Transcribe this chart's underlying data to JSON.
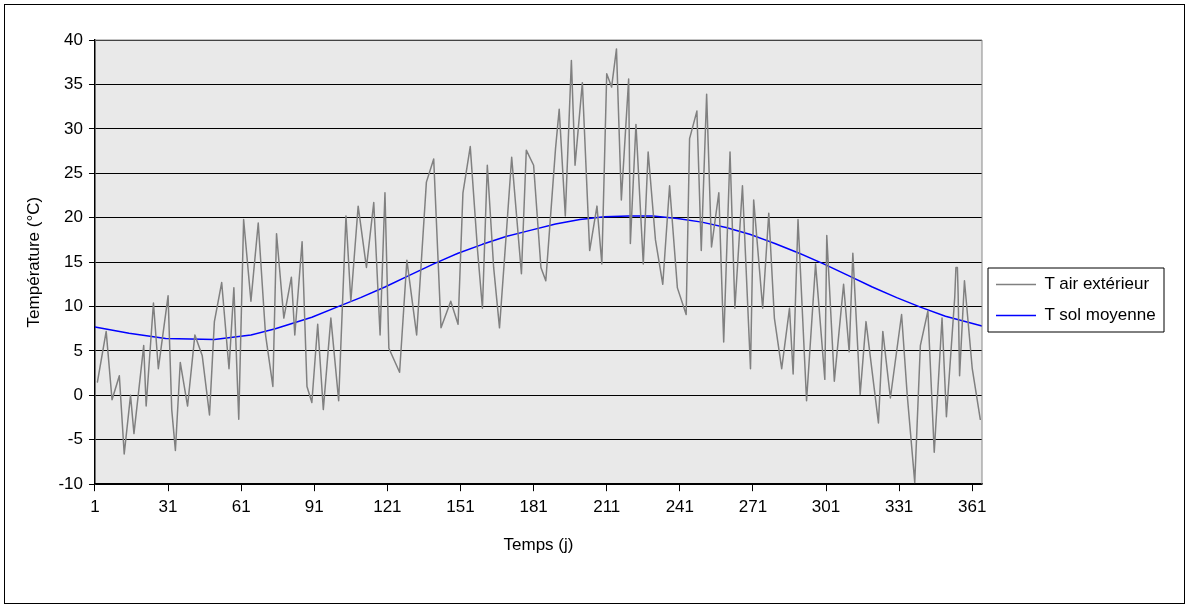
{
  "chart_data": {
    "type": "line",
    "xlabel": "Temps (j)",
    "ylabel": "Température (°C)",
    "xlim": [
      1,
      365
    ],
    "xticks": [
      1,
      31,
      61,
      91,
      121,
      151,
      181,
      211,
      241,
      271,
      301,
      331,
      361
    ],
    "ylim": [
      -10,
      40
    ],
    "yticks": [
      -10,
      -5,
      0,
      5,
      10,
      15,
      20,
      25,
      30,
      35,
      40
    ],
    "grid": "y",
    "legend": "right",
    "marker": "none",
    "line_style": "solid",
    "series": [
      {
        "name": "T air extérieur",
        "color": "#808080",
        "x": [
          2,
          5.6,
          8,
          11,
          13,
          15.6,
          17,
          21,
          22,
          25,
          27,
          31,
          32.5,
          34,
          36,
          39,
          42,
          45,
          48,
          50,
          53,
          56,
          58,
          60,
          62,
          65,
          68,
          71,
          74,
          75.5,
          78.5,
          81.6,
          83,
          86,
          88,
          90,
          92.4,
          94.7,
          97.8,
          101,
          104,
          106,
          109,
          112.4,
          115.4,
          118,
          120,
          121.6,
          126,
          129,
          133,
          137,
          140,
          143,
          147,
          150,
          152,
          155,
          158,
          160,
          162,
          164.6,
          167,
          170,
          172,
          176,
          178,
          181,
          184,
          186,
          190,
          191.5,
          194,
          196.5,
          198,
          201,
          204,
          207,
          209,
          211,
          213,
          215,
          217,
          220,
          220.7,
          223,
          226,
          228,
          231,
          234,
          236.8,
          240,
          243.6,
          245,
          248,
          249.8,
          252,
          254,
          257,
          259,
          261.6,
          263.6,
          266.7,
          270,
          271.3,
          275,
          277.5,
          279.8,
          282.8,
          286,
          287.5,
          289.5,
          293,
          296.7,
          300.5,
          301.3,
          304.4,
          308.2,
          310.5,
          312,
          315,
          317.4,
          322.5,
          324.3,
          327.4,
          332,
          334.3,
          337.4,
          339.7,
          342.8,
          345.4,
          348.6,
          350.4,
          353.8,
          354.3,
          354.9,
          355.2,
          355.8,
          357.8,
          361,
          364.3
        ],
        "values": [
          1.5,
          7.2,
          -0.5,
          2.2,
          -6.6,
          0,
          -4.3,
          5.6,
          -1.2,
          10.4,
          3,
          11.2,
          -1.6,
          -6.2,
          3.7,
          -1.2,
          6.8,
          4.5,
          -2.2,
          8.3,
          12.7,
          3,
          12.1,
          -2.7,
          19.8,
          10.6,
          19.4,
          6.8,
          1,
          18.2,
          8.7,
          13.3,
          6.8,
          17.3,
          1,
          -0.8,
          8,
          -1.6,
          8.7,
          -0.6,
          20.2,
          10.6,
          21.3,
          14.4,
          21.7,
          6.8,
          22.8,
          5.3,
          2.6,
          15.2,
          6.8,
          24,
          26.6,
          7.6,
          10.6,
          8,
          22.8,
          28,
          16.3,
          9.8,
          25.9,
          14.4,
          7.6,
          19,
          26.8,
          13.7,
          27.6,
          25.9,
          14.4,
          12.9,
          27.8,
          32.2,
          20.2,
          37.7,
          25.9,
          35.2,
          16.3,
          21.3,
          14.8,
          36.2,
          34.7,
          39,
          22,
          35.6,
          17.1,
          30.5,
          14.8,
          27.4,
          17.5,
          12.5,
          23.6,
          12.1,
          9.1,
          28.9,
          32,
          16.3,
          33.9,
          16.7,
          22.8,
          6,
          27.4,
          9.8,
          23.6,
          3,
          22,
          9.8,
          20.5,
          8.7,
          3,
          9.8,
          2.4,
          19.8,
          -0.6,
          14.8,
          1.8,
          18,
          1.6,
          12.5,
          4.9,
          16,
          0.1,
          8.3,
          -3.1,
          7.2,
          -0.3,
          9.1,
          0.1,
          -9.8,
          5.6,
          9.5,
          -6.4,
          8.7,
          -2.4,
          11,
          14.4,
          14.4,
          11.5,
          2.2,
          12.9,
          3,
          -2.7
        ]
      },
      {
        "name": "T sol moyenne",
        "color": "#0000ff",
        "x": [
          1,
          15,
          30,
          50,
          65,
          75,
          90,
          100,
          110,
          120,
          130,
          140,
          150,
          160,
          170,
          180,
          190,
          200,
          210,
          220,
          230,
          240,
          250,
          260,
          270,
          280,
          290,
          300,
          310,
          320,
          330,
          340,
          350,
          365
        ],
        "values": [
          7.7,
          7.0,
          6.4,
          6.3,
          6.8,
          7.5,
          8.8,
          9.9,
          11.0,
          12.2,
          13.5,
          14.8,
          16.0,
          17.0,
          17.9,
          18.6,
          19.3,
          19.8,
          20.1,
          20.2,
          20.2,
          19.9,
          19.5,
          18.9,
          18.1,
          17.1,
          16.0,
          14.8,
          13.5,
          12.2,
          11.0,
          9.9,
          8.9,
          7.8
        ]
      }
    ]
  }
}
